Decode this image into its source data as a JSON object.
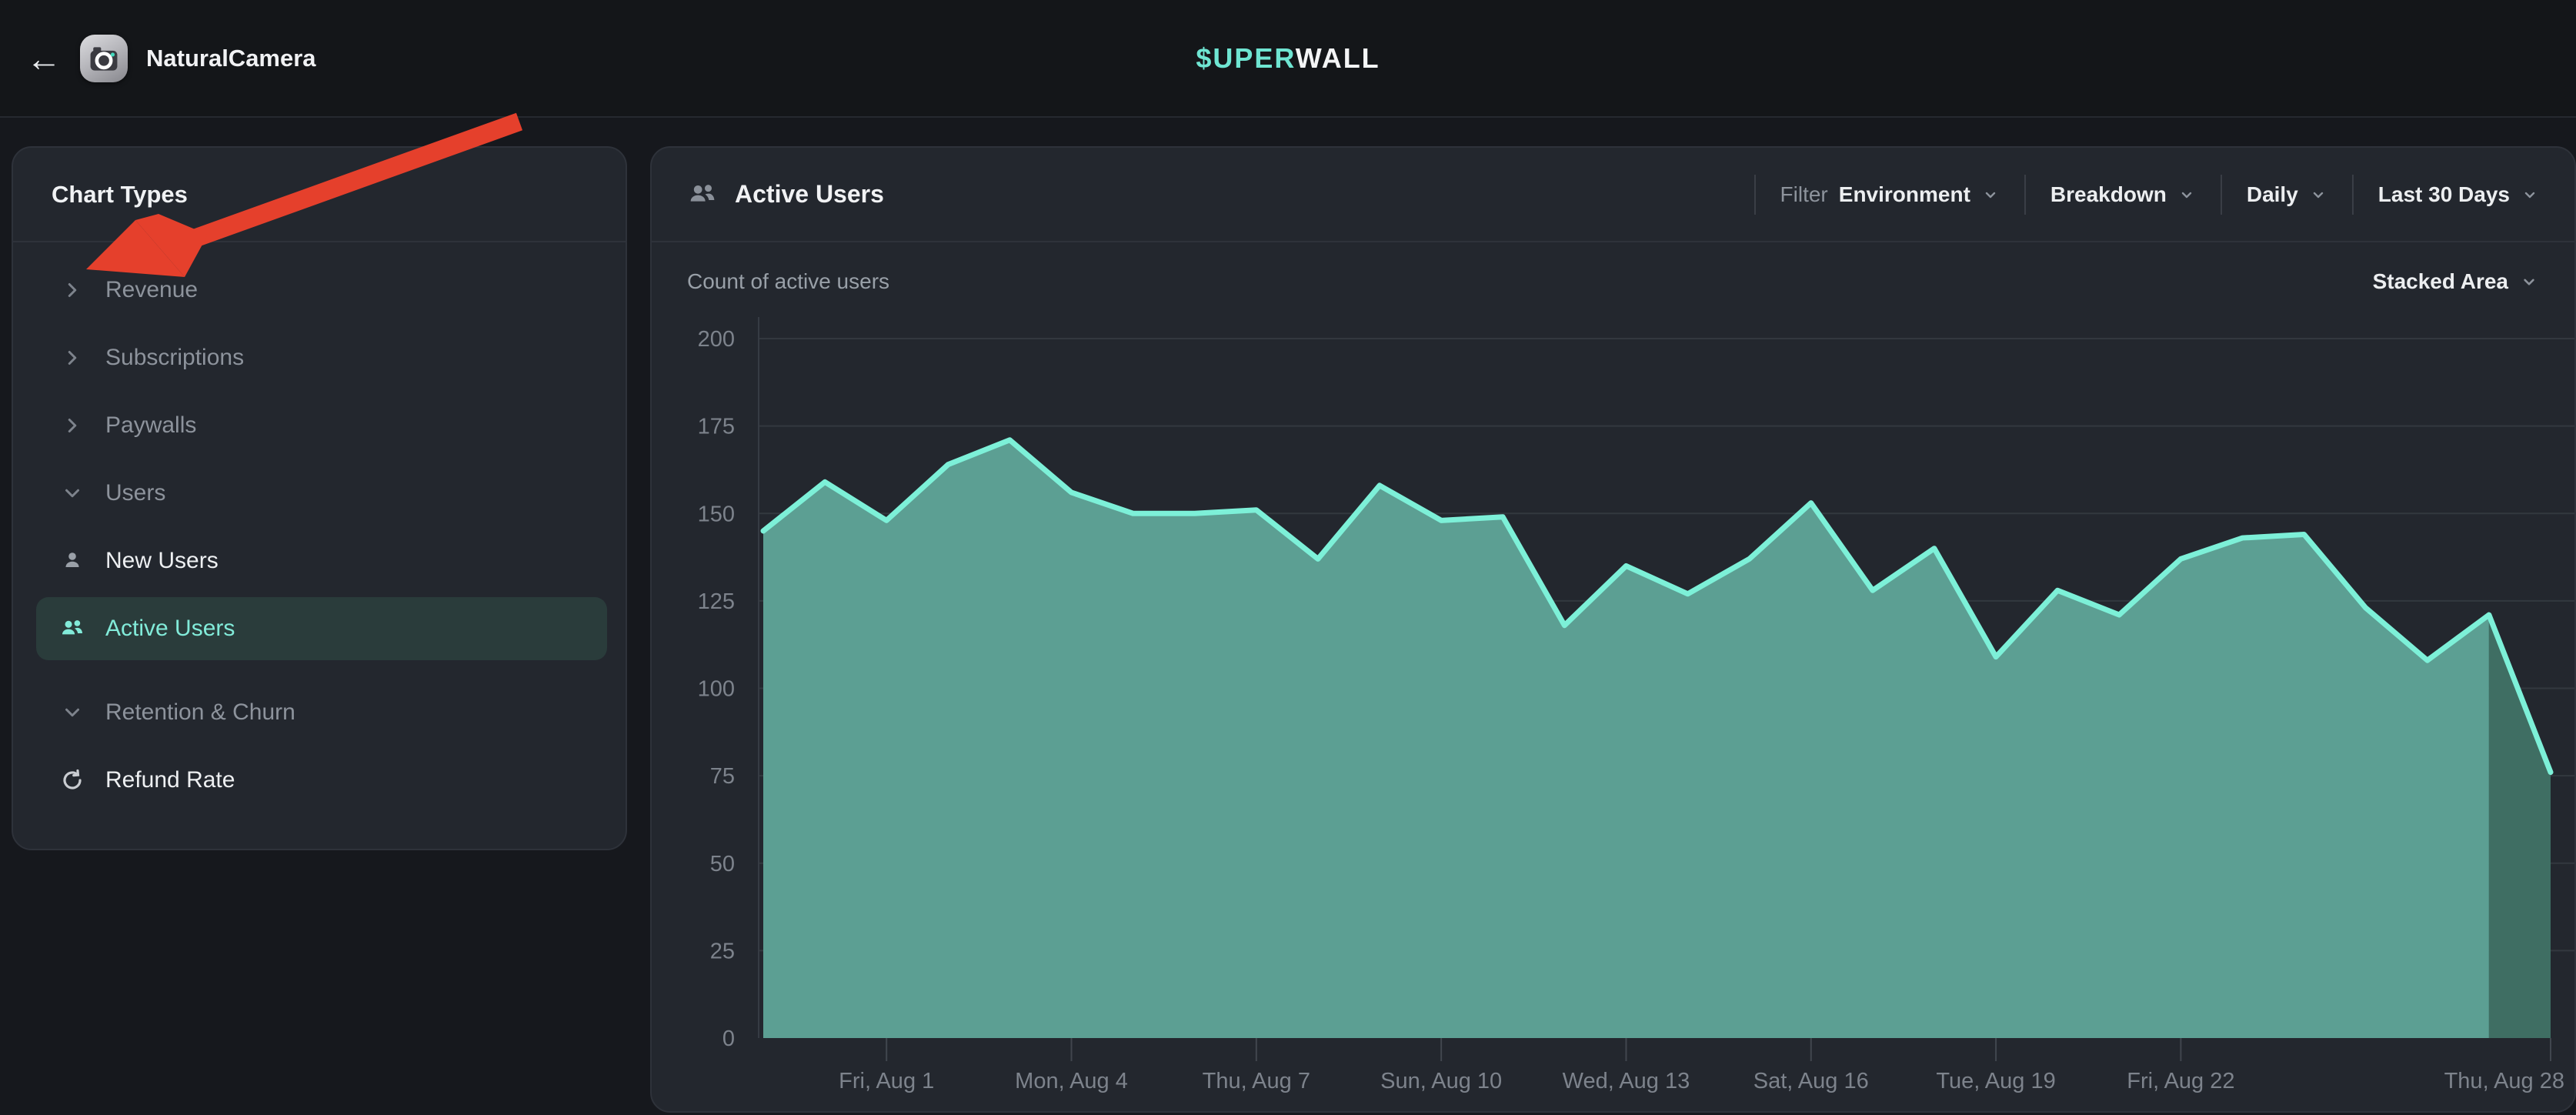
{
  "top_bar": {
    "back_label": "←",
    "app_name": "NaturalCamera",
    "logo_teal": "$UPER",
    "logo_white": "WALL"
  },
  "sidebar": {
    "title": "Chart Types",
    "items": [
      {
        "label": "Revenue",
        "icon": "chevron-right",
        "kind": "group"
      },
      {
        "label": "Subscriptions",
        "icon": "chevron-right",
        "kind": "group"
      },
      {
        "label": "Paywalls",
        "icon": "chevron-right",
        "kind": "group"
      },
      {
        "label": "Users",
        "icon": "chevron-down",
        "kind": "group",
        "expanded": true
      },
      {
        "label": "New Users",
        "icon": "user",
        "kind": "child"
      },
      {
        "label": "Active Users",
        "icon": "users",
        "kind": "child",
        "selected": true
      },
      {
        "label": "Retention & Churn",
        "icon": "chevron-down",
        "kind": "group",
        "expanded": true
      },
      {
        "label": "Refund Rate",
        "icon": "refresh",
        "kind": "child"
      }
    ]
  },
  "main": {
    "title": "Active Users",
    "subtitle": "Count of active users",
    "filters": {
      "filter_label": "Filter",
      "environment": "Environment",
      "breakdown": "Breakdown",
      "granularity": "Daily",
      "date_range": "Last 30 Days"
    },
    "chart_type_selector": "Stacked Area"
  },
  "colors": {
    "accent_teal": "#6fe5d2",
    "selected_bg": "#2a3c3b",
    "annotation_red": "#e5402c",
    "panel_bg": "#23272e",
    "page_bg": "#16181d"
  },
  "chart_data": {
    "type": "area",
    "title": "Active Users",
    "ylabel": "Count of active users",
    "ylim": [
      0,
      200
    ],
    "y_ticks": [
      0,
      25,
      50,
      75,
      100,
      125,
      150,
      175,
      200
    ],
    "grid": true,
    "legend_position": "none",
    "x": [
      "Jul 30",
      "Jul 31",
      "Aug 1",
      "Aug 2",
      "Aug 3",
      "Aug 4",
      "Aug 5",
      "Aug 6",
      "Aug 7",
      "Aug 8",
      "Aug 9",
      "Aug 10",
      "Aug 11",
      "Aug 12",
      "Aug 13",
      "Aug 14",
      "Aug 15",
      "Aug 16",
      "Aug 17",
      "Aug 18",
      "Aug 19",
      "Aug 20",
      "Aug 21",
      "Aug 22",
      "Aug 23",
      "Aug 24",
      "Aug 25",
      "Aug 26",
      "Aug 27",
      "Aug 28"
    ],
    "values": [
      145,
      159,
      148,
      164,
      171,
      156,
      150,
      150,
      151,
      137,
      158,
      148,
      149,
      118,
      135,
      127,
      137,
      153,
      128,
      140,
      109,
      128,
      121,
      137,
      143,
      144,
      123,
      108,
      121,
      76
    ],
    "x_tick_indices": [
      2,
      5,
      8,
      11,
      14,
      17,
      20,
      23,
      29
    ],
    "x_tick_labels": [
      "Fri, Aug 1",
      "Mon, Aug 4",
      "Thu, Aug 7",
      "Sun, Aug 10",
      "Wed, Aug 13",
      "Sat, Aug 16",
      "Tue, Aug 19",
      "Fri, Aug 22",
      "Thu, Aug 28"
    ],
    "partial_segment_start_index": 28,
    "series_colors": {
      "line": "#7df0d8",
      "fill": "#5c9f93",
      "fill_partial": "#3f6e63"
    },
    "axis_text_color": "#7d838c",
    "grid_color": "#33383f"
  }
}
